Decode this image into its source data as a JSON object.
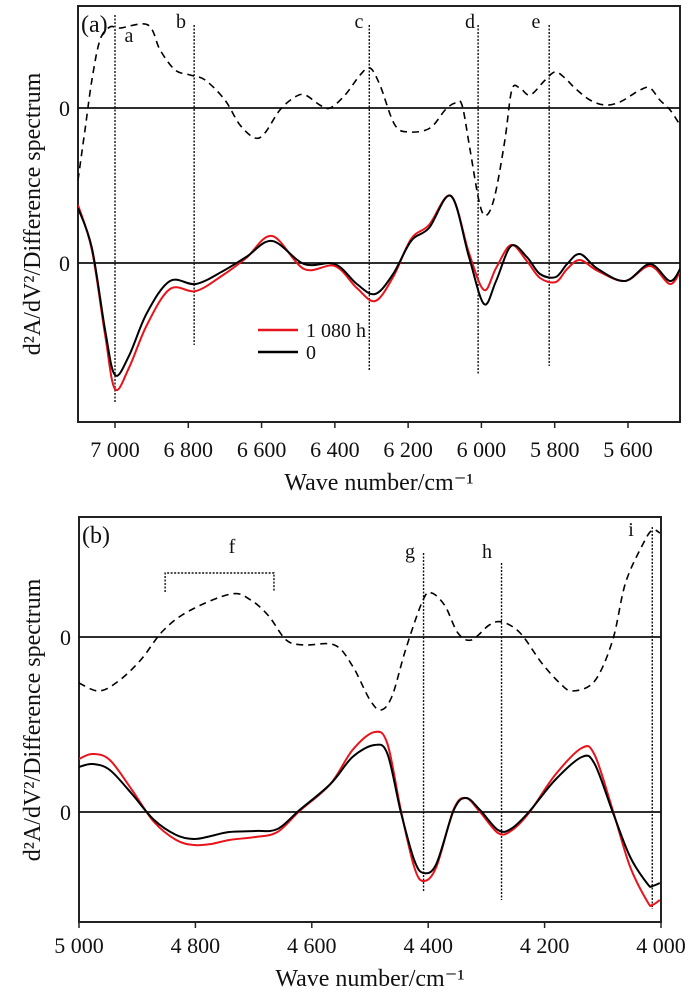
{
  "chart_data": [
    {
      "type": "line",
      "panel_label": "(a)",
      "xlabel": "Wave number/cm⁻¹",
      "ylabel": "d²A/dV²/Difference spectrum",
      "xlim": [
        7101,
        5458
      ],
      "ylim": [
        -1.59,
        2.57
      ],
      "xticks": [
        7000,
        6800,
        6600,
        6400,
        6200,
        6000,
        5800,
        5600
      ],
      "xtick_labels": [
        "7 000",
        "6 800",
        "6 600",
        "6 400",
        "6 200",
        "6 000",
        "5 800",
        "5 600"
      ],
      "zero_labels": [
        "0",
        "0"
      ],
      "legend": {
        "position": "center-left",
        "entries": [
          "1 080 h",
          "0"
        ]
      },
      "series": [
        {
          "name": "1 080 h",
          "color": "#e8141c",
          "style": "solid",
          "offset": 0,
          "x": [
            7101,
            7063,
            7027,
            7000,
            6962,
            6913,
            6850,
            6779,
            6705,
            6642,
            6571,
            6484,
            6400,
            6340,
            6290,
            6241,
            6192,
            6143,
            6083,
            6034,
            5993,
            5960,
            5919,
            5876,
            5840,
            5797,
            5766,
            5731,
            5682,
            5608,
            5540,
            5485,
            5455
          ],
          "y": [
            0.58,
            0.13,
            -0.72,
            -1.26,
            -1.05,
            -0.62,
            -0.26,
            -0.28,
            -0.12,
            0.05,
            0.27,
            -0.06,
            -0.03,
            -0.25,
            -0.38,
            -0.14,
            0.24,
            0.38,
            0.67,
            0.1,
            -0.27,
            -0.05,
            0.18,
            0.02,
            -0.15,
            -0.19,
            -0.06,
            0.03,
            -0.08,
            -0.18,
            -0.03,
            -0.21,
            -0.06
          ]
        },
        {
          "name": "0",
          "color": "#000000",
          "style": "solid",
          "offset": 0,
          "x": [
            7101,
            7063,
            7027,
            7000,
            6962,
            6913,
            6850,
            6779,
            6705,
            6642,
            6571,
            6484,
            6400,
            6340,
            6290,
            6241,
            6192,
            6143,
            6083,
            6034,
            5993,
            5960,
            5919,
            5876,
            5840,
            5797,
            5766,
            5731,
            5682,
            5608,
            5540,
            5485,
            5455
          ],
          "y": [
            0.55,
            0.15,
            -0.67,
            -1.12,
            -0.93,
            -0.5,
            -0.18,
            -0.21,
            -0.08,
            0.06,
            0.22,
            -0.01,
            -0.01,
            -0.21,
            -0.31,
            -0.11,
            0.22,
            0.35,
            0.67,
            0.06,
            -0.41,
            -0.18,
            0.17,
            0.06,
            -0.11,
            -0.14,
            -0.01,
            0.09,
            -0.06,
            -0.18,
            -0.01,
            -0.18,
            -0.04
          ]
        },
        {
          "name": "Difference spectrum",
          "color": "#000000",
          "style": "dashed",
          "offset": 1.55,
          "x": [
            7101,
            7082,
            7063,
            7041,
            7014,
            6986,
            6910,
            6877,
            6836,
            6795,
            6754,
            6700,
            6659,
            6618,
            6591,
            6550,
            6509,
            6481,
            6441,
            6413,
            6372,
            6331,
            6304,
            6277,
            6236,
            6195,
            6140,
            6099,
            6072,
            6053,
            6031,
            6004,
            5985,
            5963,
            5936,
            5917,
            5895,
            5867,
            5826,
            5799,
            5772,
            5745,
            5704,
            5663,
            5622,
            5567,
            5540,
            5513,
            5485,
            5458
          ],
          "y": [
            -0.72,
            -0.22,
            0.28,
            0.68,
            0.81,
            0.8,
            0.83,
            0.58,
            0.38,
            0.33,
            0.28,
            0.08,
            -0.17,
            -0.3,
            -0.25,
            -0.02,
            0.11,
            0.13,
            0.03,
            0.0,
            0.13,
            0.33,
            0.4,
            0.23,
            -0.17,
            -0.24,
            -0.2,
            -0.02,
            0.05,
            0.03,
            -0.42,
            -0.97,
            -1.07,
            -0.87,
            -0.32,
            0.18,
            0.2,
            0.13,
            0.28,
            0.36,
            0.3,
            0.2,
            0.08,
            0.03,
            0.06,
            0.18,
            0.2,
            0.08,
            -0.02,
            -0.17
          ]
        }
      ],
      "markers": [
        {
          "label": "a",
          "x": 7000
        },
        {
          "label": "b",
          "x": 6784
        },
        {
          "label": "c",
          "x": 6306
        },
        {
          "label": "d",
          "x": 6009
        },
        {
          "label": "e",
          "x": 5815
        }
      ]
    },
    {
      "type": "line",
      "panel_label": "(b)",
      "xlabel": "Wave number/cm⁻¹",
      "ylabel": "d²A/dV²/Difference spectrum",
      "xlim": [
        5000,
        4000
      ],
      "ylim": [
        -1.1,
        2.95
      ],
      "xticks": [
        5000,
        4800,
        4600,
        4400,
        4200,
        4000
      ],
      "xtick_labels": [
        "5 000",
        "4 800",
        "4 600",
        "4 400",
        "4 200",
        "4 000"
      ],
      "zero_labels": [
        "0",
        "0"
      ],
      "series": [
        {
          "name": "1 080 h",
          "color": "#e8141c",
          "style": "solid",
          "offset": 0,
          "x": [
            5000,
            4977,
            4947,
            4909,
            4871,
            4833,
            4803,
            4773,
            4742,
            4697,
            4659,
            4621,
            4568,
            4530,
            4492,
            4470,
            4447,
            4424,
            4408,
            4386,
            4356,
            4335,
            4311,
            4280,
            4258,
            4227,
            4182,
            4136,
            4114,
            4083,
            4053,
            4023,
            4015,
            4002
          ],
          "y": [
            0.53,
            0.58,
            0.52,
            0.22,
            -0.1,
            -0.28,
            -0.33,
            -0.32,
            -0.28,
            -0.25,
            -0.2,
            0.01,
            0.28,
            0.62,
            0.8,
            0.68,
            0.02,
            -0.55,
            -0.69,
            -0.55,
            0.03,
            0.14,
            0.0,
            -0.21,
            -0.19,
            -0.01,
            0.37,
            0.64,
            0.57,
            0.02,
            -0.55,
            -0.9,
            -0.93,
            -0.88
          ]
        },
        {
          "name": "0",
          "color": "#000000",
          "style": "solid",
          "offset": 0,
          "x": [
            5000,
            4977,
            4947,
            4909,
            4871,
            4833,
            4803,
            4773,
            4742,
            4697,
            4659,
            4621,
            4568,
            4530,
            4492,
            4470,
            4447,
            4424,
            4408,
            4386,
            4356,
            4335,
            4311,
            4280,
            4258,
            4227,
            4182,
            4136,
            4114,
            4083,
            4053,
            4023,
            4015,
            4002
          ],
          "y": [
            0.45,
            0.48,
            0.42,
            0.18,
            -0.08,
            -0.23,
            -0.27,
            -0.24,
            -0.2,
            -0.19,
            -0.17,
            0.02,
            0.28,
            0.55,
            0.67,
            0.58,
            0.0,
            -0.48,
            -0.61,
            -0.52,
            0.02,
            0.14,
            0.02,
            -0.18,
            -0.17,
            0.0,
            0.32,
            0.55,
            0.48,
            0.0,
            -0.45,
            -0.72,
            -0.74,
            -0.71
          ]
        },
        {
          "name": "Difference spectrum",
          "color": "#000000",
          "style": "dashed",
          "offset": 1.75,
          "x": [
            5000,
            4966,
            4932,
            4894,
            4856,
            4811,
            4739,
            4705,
            4674,
            4644,
            4614,
            4561,
            4530,
            4500,
            4481,
            4462,
            4439,
            4409,
            4394,
            4371,
            4349,
            4326,
            4295,
            4273,
            4242,
            4205,
            4174,
            4152,
            4114,
            4083,
            4061,
            4030,
            4015,
            4002
          ],
          "y": [
            -0.46,
            -0.54,
            -0.44,
            -0.23,
            0.06,
            0.26,
            0.43,
            0.37,
            0.21,
            -0.03,
            -0.08,
            -0.08,
            -0.29,
            -0.63,
            -0.73,
            -0.59,
            -0.13,
            0.37,
            0.44,
            0.31,
            0.04,
            -0.03,
            0.12,
            0.15,
            0.04,
            -0.26,
            -0.46,
            -0.54,
            -0.44,
            -0.03,
            0.54,
            0.94,
            1.07,
            1.04
          ]
        }
      ],
      "markers": [
        {
          "label": "g",
          "x": 4408
        },
        {
          "label": "h",
          "x": 4274
        },
        {
          "label": "i",
          "x": 4015
        }
      ],
      "bracket": {
        "label": "f",
        "x": [
          4852,
          4665
        ]
      }
    }
  ]
}
